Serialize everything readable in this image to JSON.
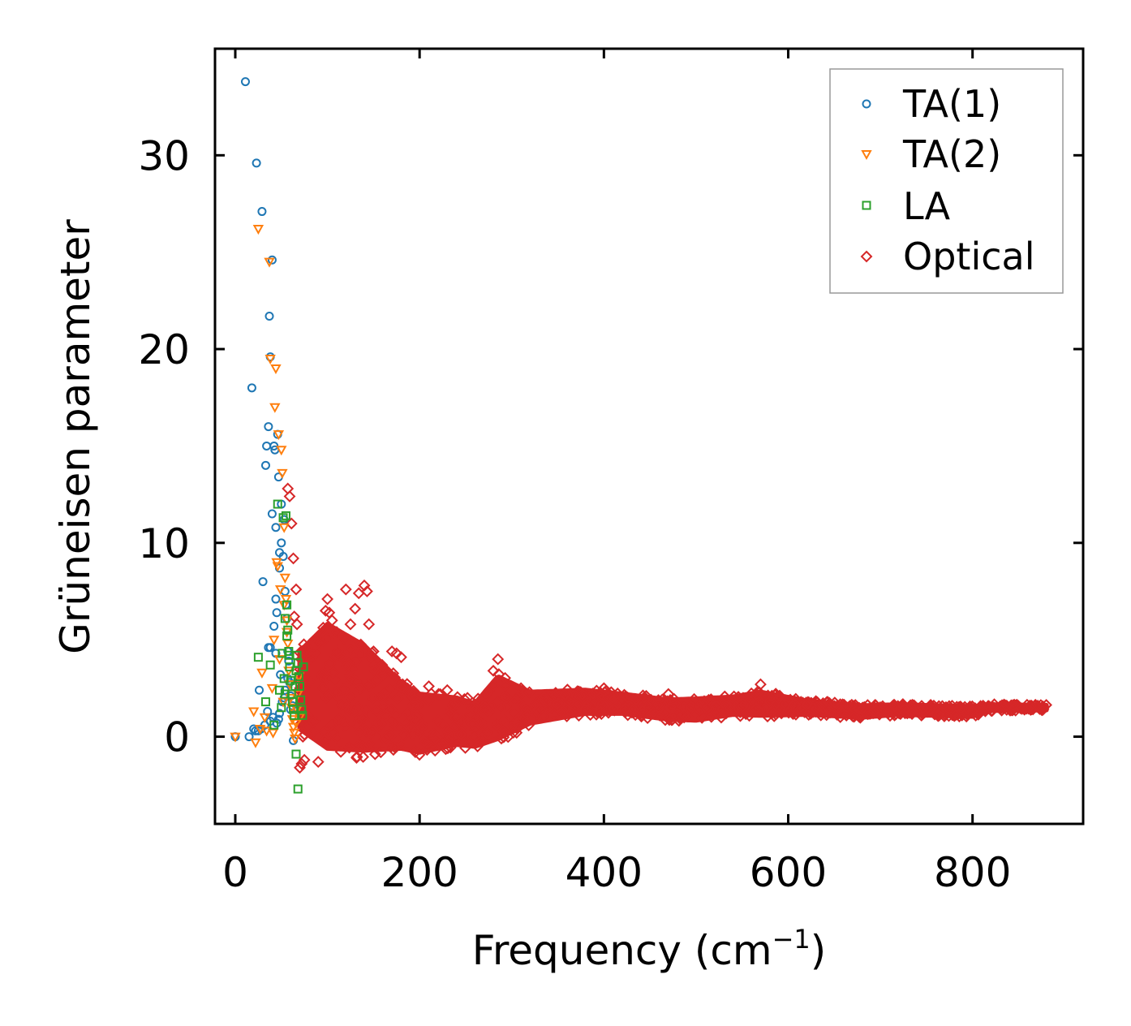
{
  "chart_data": {
    "type": "scatter",
    "title": "",
    "xlabel": "Frequency (cm",
    "xlabel_sup": "−1",
    "xlabel_end": ")",
    "ylabel": "Grüneisen parameter",
    "xlim": [
      -22,
      920
    ],
    "ylim": [
      -4.5,
      35.5
    ],
    "xticks": [
      0,
      200,
      400,
      600,
      800
    ],
    "yticks": [
      0,
      10,
      20,
      30
    ],
    "tick_labels_x": [
      "0",
      "200",
      "400",
      "600",
      "800"
    ],
    "tick_labels_y": [
      "0",
      "10",
      "20",
      "30"
    ],
    "legend_position": "top-right",
    "legend": [
      {
        "label": "TA(1)",
        "marker": "circle",
        "color": "#1f77b4"
      },
      {
        "label": "TA(2)",
        "marker": "triangle-down",
        "color": "#ff7f0e"
      },
      {
        "label": "LA",
        "marker": "square",
        "color": "#2ca02c"
      },
      {
        "label": "Optical",
        "marker": "diamond",
        "color": "#d62728"
      }
    ],
    "series": [
      {
        "name": "TA(1)",
        "color": "#1f77b4",
        "x": [
          11,
          18,
          23,
          26,
          29,
          30,
          33,
          34,
          36,
          36,
          37,
          38,
          40,
          40,
          42,
          42,
          43,
          44,
          44,
          45,
          46,
          47,
          48,
          48,
          50,
          50,
          52,
          53,
          54,
          55,
          56,
          57,
          58,
          59,
          60,
          62,
          0,
          15,
          20,
          22,
          25,
          28,
          32,
          35,
          38,
          41,
          45,
          48,
          51,
          54,
          57,
          60,
          63,
          38,
          44,
          49,
          53,
          47
        ],
        "y": [
          33.8,
          18.0,
          29.6,
          2.4,
          27.1,
          8.0,
          14.0,
          15.0,
          16.0,
          4.6,
          21.7,
          19.6,
          24.6,
          11.5,
          15.0,
          5.7,
          14.8,
          10.8,
          7.1,
          6.4,
          15.6,
          13.4,
          9.5,
          8.7,
          12.0,
          10.0,
          9.3,
          11.2,
          7.5,
          6.8,
          6.1,
          4.4,
          3.9,
          2.8,
          2.1,
          1.6,
          0.0,
          0.0,
          0.4,
          0.3,
          0.3,
          0.4,
          0.6,
          1.3,
          0.8,
          1.0,
          0.7,
          1.2,
          1.8,
          2.4,
          3.0,
          1.4,
          -0.2,
          4.6,
          4.3,
          3.2,
          2.0,
          0.9
        ]
      },
      {
        "name": "TA(2)",
        "color": "#ff7f0e",
        "x": [
          0,
          20,
          22,
          25,
          27,
          29,
          32,
          34,
          37,
          38,
          40,
          41,
          42,
          43,
          44,
          45,
          47,
          48,
          50,
          51,
          52,
          53,
          54,
          55,
          56,
          57,
          58,
          59,
          60,
          61,
          62,
          63,
          64,
          65,
          66,
          67,
          68,
          69,
          70,
          46,
          49,
          53,
          56
        ],
        "y": [
          0.0,
          1.3,
          -0.3,
          26.2,
          0.4,
          3.3,
          1.0,
          0.3,
          24.5,
          19.5,
          2.5,
          0.2,
          5.0,
          17.0,
          19.0,
          9.0,
          15.6,
          4.0,
          14.8,
          13.6,
          1.8,
          10.8,
          8.2,
          7.1,
          6.0,
          4.8,
          3.4,
          2.7,
          2.0,
          1.5,
          0.9,
          0.5,
          0.2,
          -0.1,
          0.7,
          1.4,
          2.2,
          3.1,
          1.0,
          8.8,
          7.6,
          6.8,
          5.4
        ]
      },
      {
        "name": "LA",
        "color": "#2ca02c",
        "x": [
          25,
          33,
          38,
          42,
          46,
          48,
          50,
          51,
          52,
          53,
          54,
          55,
          56,
          57,
          58,
          59,
          60,
          61,
          62,
          63,
          64,
          65,
          66,
          67,
          68,
          69,
          70,
          71,
          72,
          73,
          74,
          66,
          68,
          58,
          56,
          54
        ],
        "y": [
          4.1,
          1.8,
          3.7,
          0.6,
          12.0,
          2.4,
          1.5,
          4.3,
          11.3,
          3.0,
          2.2,
          11.4,
          6.8,
          5.5,
          4.2,
          3.6,
          2.9,
          2.2,
          1.8,
          1.4,
          1.1,
          2.6,
          3.4,
          4.2,
          3.8,
          3.1,
          2.6,
          1.9,
          1.4,
          1.1,
          3.6,
          -0.9,
          -2.7,
          4.4,
          5.2,
          6.1
        ]
      }
    ],
    "optical_band": {
      "name": "Optical",
      "color": "#d62728",
      "x_range": [
        55,
        880
      ],
      "center_x": [
        70,
        100,
        140,
        180,
        200,
        240,
        260,
        285,
        320,
        380,
        420,
        470,
        500,
        540,
        570,
        620,
        680,
        720,
        800,
        820,
        880
      ],
      "center_y": [
        2.4,
        2.6,
        2.0,
        1.1,
        0.7,
        0.8,
        0.6,
        1.5,
        1.5,
        1.8,
        1.7,
        1.4,
        1.4,
        1.6,
        1.7,
        1.5,
        1.3,
        1.4,
        1.3,
        1.5,
        1.5
      ],
      "half_width": [
        2.0,
        3.2,
        2.7,
        1.7,
        1.5,
        1.2,
        1.1,
        1.6,
        0.8,
        0.6,
        0.5,
        0.5,
        0.55,
        0.45,
        0.6,
        0.35,
        0.3,
        0.25,
        0.25,
        0.15,
        0.12
      ],
      "outliers_x": [
        57,
        59,
        61,
        63,
        64,
        66,
        67,
        70,
        72,
        75,
        78,
        90,
        98,
        100,
        102,
        105,
        110,
        120,
        125,
        130,
        134,
        140,
        143,
        145,
        150,
        160,
        170,
        175,
        180,
        190,
        210,
        230,
        252,
        280,
        285,
        300,
        310,
        400,
        470,
        570
      ],
      "outliers_y": [
        12.8,
        12.4,
        11.0,
        9.2,
        6.2,
        7.6,
        5.8,
        -1.6,
        -1.4,
        -1.2,
        4.6,
        -1.3,
        6.5,
        7.1,
        6.4,
        6.0,
        5.4,
        7.6,
        5.8,
        6.6,
        7.4,
        7.8,
        7.5,
        5.8,
        4.4,
        3.5,
        4.4,
        4.3,
        4.1,
        2.2,
        2.6,
        2.4,
        2.0,
        3.4,
        4.0,
        0.5,
        2.5,
        2.5,
        2.2,
        2.7
      ]
    }
  }
}
